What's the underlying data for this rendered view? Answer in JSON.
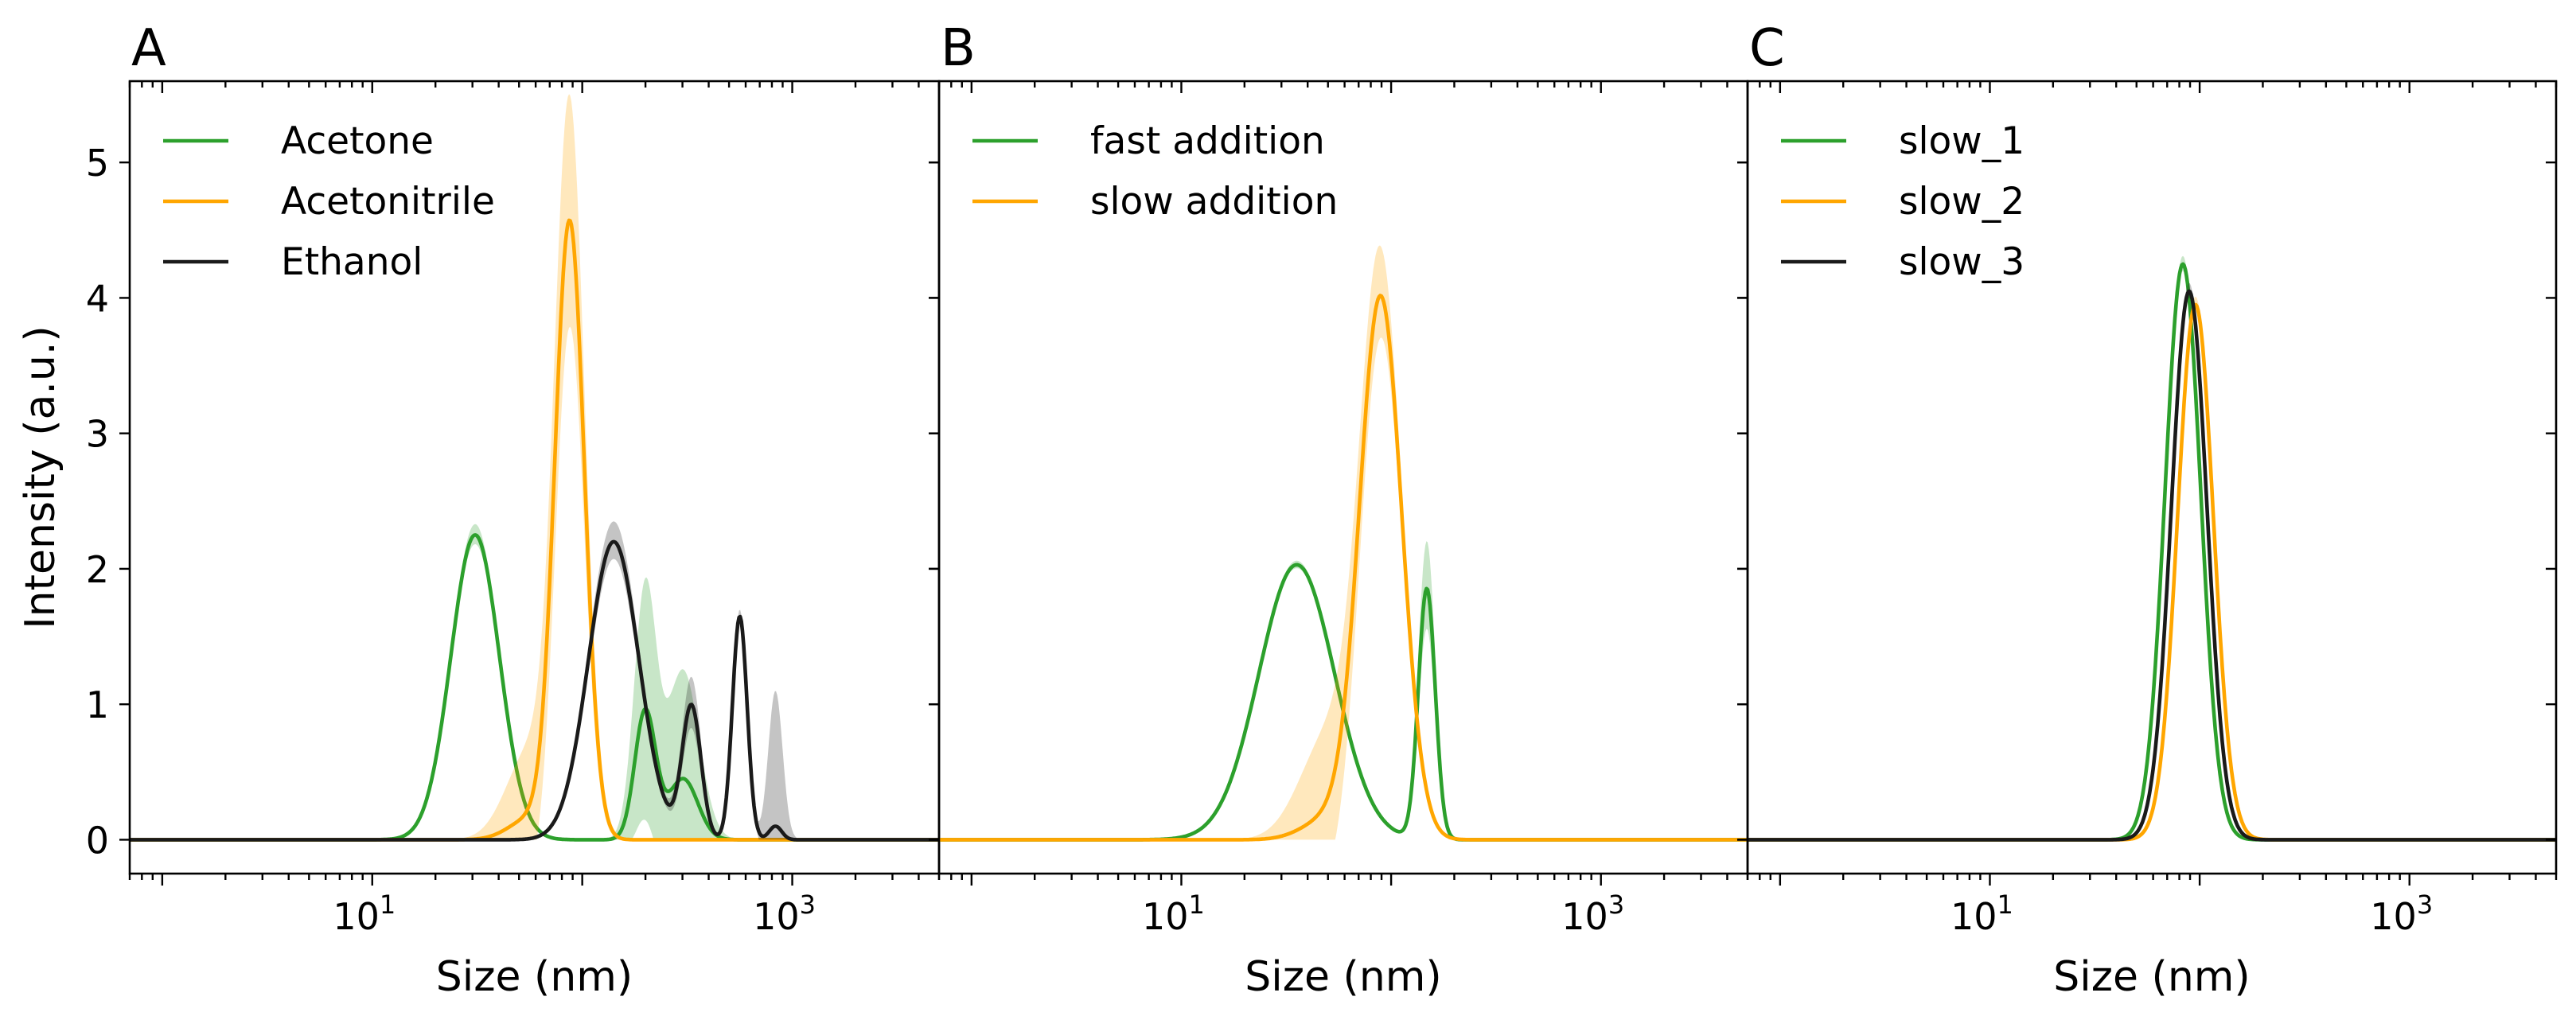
{
  "colors": {
    "green": "#2ca02c",
    "orange": "#ffa600",
    "black": "#1a1a1a"
  },
  "chart_data": [
    {
      "type": "line",
      "panel_label": "A",
      "xlabel": "Size (nm)",
      "ylabel": "Intensity (a.u.)",
      "xscale": "log",
      "xlim": [
        0.7,
        5000
      ],
      "ylim": [
        -0.25,
        5.6
      ],
      "xticks": [
        {
          "value": 10,
          "base": "10",
          "exp": "1"
        },
        {
          "value": 1000,
          "base": "10",
          "exp": "3"
        }
      ],
      "yticks": [
        0,
        1,
        2,
        3,
        4,
        5
      ],
      "legend_position": "top-left",
      "series": [
        {
          "name": "Acetone",
          "color": "#2ca02c",
          "bands": [
            {
              "mu": 1.49,
              "sigma": 0.115,
              "amp": 2.25,
              "err": 0.08
            },
            {
              "mu": 2.3,
              "sigma": 0.05,
              "amp": 0.95,
              "err": 0.9
            },
            {
              "mu": 2.48,
              "sigma": 0.07,
              "amp": 0.45,
              "err": 0.8
            }
          ]
        },
        {
          "name": "Acetonitrile",
          "color": "#ffa600",
          "bands": [
            {
              "mu": 1.94,
              "sigma": 0.07,
              "amp": 4.55,
              "err": 0.8
            },
            {
              "mu": 1.75,
              "sigma": 0.1,
              "amp": 0.15,
              "err": 0.5
            }
          ]
        },
        {
          "name": "Ethanol",
          "color": "#1a1a1a",
          "bands": [
            {
              "mu": 2.15,
              "sigma": 0.12,
              "amp": 2.2,
              "err": 0.15
            },
            {
              "mu": 2.52,
              "sigma": 0.045,
              "amp": 0.98,
              "err": 0.2
            },
            {
              "mu": 2.75,
              "sigma": 0.035,
              "amp": 1.65,
              "err": 0.05
            },
            {
              "mu": 2.92,
              "sigma": 0.03,
              "amp": 0.1,
              "err": 1.0
            }
          ]
        }
      ]
    },
    {
      "type": "line",
      "panel_label": "B",
      "xlabel": "Size (nm)",
      "ylabel": "",
      "xscale": "log",
      "xlim": [
        0.7,
        5000
      ],
      "ylim": [
        -0.25,
        5.6
      ],
      "xticks": [
        {
          "value": 10,
          "base": "10",
          "exp": "1"
        },
        {
          "value": 1000,
          "base": "10",
          "exp": "3"
        }
      ],
      "yticks": [
        0,
        1,
        2,
        3,
        4,
        5
      ],
      "legend_position": "top-left",
      "series": [
        {
          "name": "fast addition",
          "color": "#2ca02c",
          "bands": [
            {
              "mu": 1.55,
              "sigma": 0.18,
              "amp": 2.03,
              "err": 0.03
            },
            {
              "mu": 2.17,
              "sigma": 0.04,
              "amp": 1.85,
              "err": 0.35
            }
          ]
        },
        {
          "name": "slow addition",
          "color": "#ffa600",
          "bands": [
            {
              "mu": 1.95,
              "sigma": 0.1,
              "amp": 4.0,
              "err": 0.25
            },
            {
              "mu": 1.7,
              "sigma": 0.12,
              "amp": 0.15,
              "err": 0.6
            }
          ]
        }
      ]
    },
    {
      "type": "line",
      "panel_label": "C",
      "xlabel": "Size (nm)",
      "ylabel": "",
      "xscale": "log",
      "xlim": [
        0.7,
        5000
      ],
      "ylim": [
        -0.25,
        5.6
      ],
      "xticks": [
        {
          "value": 10,
          "base": "10",
          "exp": "1"
        },
        {
          "value": 1000,
          "base": "10",
          "exp": "3"
        }
      ],
      "yticks": [
        0,
        1,
        2,
        3,
        4,
        5
      ],
      "legend_position": "top-left",
      "series": [
        {
          "name": "slow_1",
          "color": "#2ca02c",
          "bands": [
            {
              "mu": 1.92,
              "sigma": 0.085,
              "amp": 4.25,
              "err": 0.06
            }
          ]
        },
        {
          "name": "slow_2",
          "color": "#ffa600",
          "bands": [
            {
              "mu": 1.98,
              "sigma": 0.085,
              "amp": 3.95,
              "err": 0.06
            }
          ]
        },
        {
          "name": "slow_3",
          "color": "#1a1a1a",
          "bands": [
            {
              "mu": 1.95,
              "sigma": 0.085,
              "amp": 4.05,
              "err": 0.06
            }
          ]
        }
      ]
    }
  ]
}
